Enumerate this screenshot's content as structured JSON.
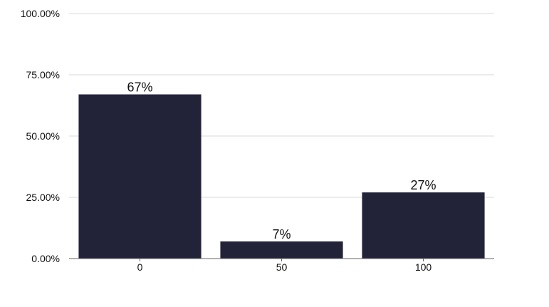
{
  "chart_data": {
    "type": "bar",
    "categories": [
      "0",
      "50",
      "100"
    ],
    "values": [
      67,
      7,
      27
    ],
    "data_labels": [
      "67%",
      "7%",
      "27%"
    ],
    "y_ticks": [
      "0.00%",
      "25.00%",
      "50.00%",
      "75.00%",
      "100.00%"
    ],
    "ylim": [
      0,
      100
    ],
    "grid": true,
    "legend": "none",
    "bar_color": "#222239",
    "grid_color": "#d9d9d9",
    "axis_color": "#666666"
  }
}
